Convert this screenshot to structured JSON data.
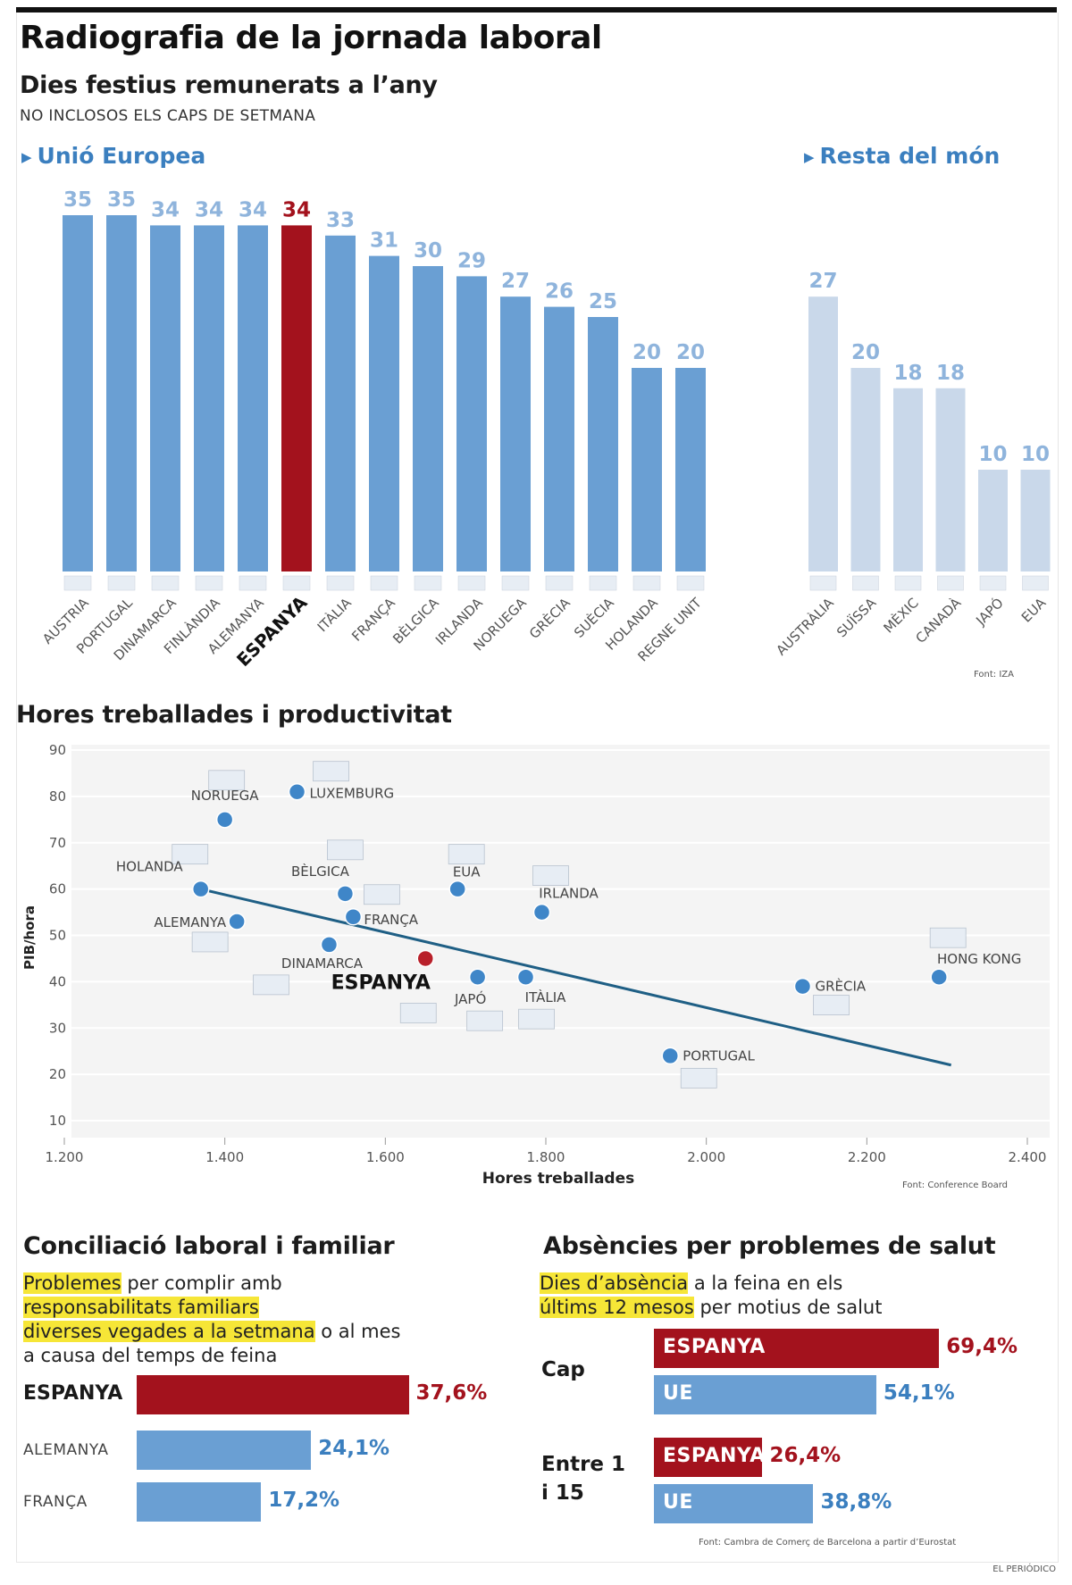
{
  "title": "Radiografia de la jornada laboral",
  "holidays": {
    "heading": "Dies festius remunerats a l’any",
    "subheading": "NO INCLOSOS ELS CAPS DE SETMANA",
    "eu_label": "Unió Europea",
    "world_label": "Resta del món",
    "source": "Font: IZA",
    "colors": {
      "eu": "#6a9fd3",
      "highlight": "#a3121d",
      "world": "#c9d8ea",
      "label": "#8fb4dc"
    }
  },
  "chart_data": [
    {
      "type": "bar",
      "title": "Dies festius remunerats a l’any — Unió Europea",
      "categories": [
        "AUSTRIA",
        "PORTUGAL",
        "DINAMARCA",
        "FINLÀNDIA",
        "ALEMANYA",
        "ESPANYA",
        "ITÀLIA",
        "FRANÇA",
        "BÈLGICA",
        "IRLANDA",
        "NORUEGA",
        "GRÈCIA",
        "SUÈCIA",
        "HOLANDA",
        "REGNE UNIT"
      ],
      "values": [
        35,
        35,
        34,
        34,
        34,
        34,
        33,
        31,
        30,
        29,
        27,
        26,
        25,
        20,
        20
      ],
      "highlight": "ESPANYA",
      "ylim": [
        0,
        35
      ]
    },
    {
      "type": "bar",
      "title": "Dies festius remunerats a l’any — Resta del món",
      "categories": [
        "AUSTRÀLIA",
        "SUÏSSA",
        "MÈXIC",
        "CANADÀ",
        "JAPÓ",
        "EUA"
      ],
      "values": [
        27,
        20,
        18,
        18,
        10,
        10
      ],
      "ylim": [
        0,
        35
      ]
    },
    {
      "type": "scatter",
      "title": "Hores treballades i productivitat",
      "xlabel": "Hores treballades",
      "ylabel": "PIB/hora",
      "xlim": [
        1200,
        2400
      ],
      "ylim": [
        10,
        90
      ],
      "xticks": [
        "1.200",
        "1.400",
        "1.600",
        "1.800",
        "2.000",
        "2.200",
        "2.400"
      ],
      "yticks": [
        10,
        20,
        30,
        40,
        50,
        60,
        70,
        80,
        90
      ],
      "points": [
        {
          "name": "NORUEGA",
          "x": 1400,
          "y": 75
        },
        {
          "name": "LUXEMBURG",
          "x": 1490,
          "y": 81
        },
        {
          "name": "HOLANDA",
          "x": 1370,
          "y": 60
        },
        {
          "name": "ALEMANYA",
          "x": 1415,
          "y": 53
        },
        {
          "name": "DINAMARCA",
          "x": 1530,
          "y": 48
        },
        {
          "name": "BÈLGICA",
          "x": 1550,
          "y": 59
        },
        {
          "name": "FRANÇA",
          "x": 1560,
          "y": 54
        },
        {
          "name": "ESPANYA",
          "x": 1650,
          "y": 45
        },
        {
          "name": "EUA",
          "x": 1690,
          "y": 60
        },
        {
          "name": "IRLANDA",
          "x": 1795,
          "y": 55
        },
        {
          "name": "JAPÓ",
          "x": 1715,
          "y": 41
        },
        {
          "name": "ITÀLIA",
          "x": 1775,
          "y": 41
        },
        {
          "name": "PORTUGAL",
          "x": 1955,
          "y": 24
        },
        {
          "name": "GRÈCIA",
          "x": 2120,
          "y": 39
        },
        {
          "name": "HONG KONG",
          "x": 2290,
          "y": 41
        }
      ],
      "trendline": [
        {
          "x": 1370,
          "y": 60
        },
        {
          "x": 2305,
          "y": 22
        }
      ],
      "source": "Font: Conference Board"
    },
    {
      "type": "bar",
      "orientation": "horizontal",
      "title": "Conciliació laboral i familiar",
      "categories": [
        "ESPANYA",
        "ALEMANYA",
        "FRANÇA"
      ],
      "values": [
        37.6,
        24.1,
        17.2
      ],
      "labels": [
        "37,6%",
        "24,1%",
        "17,2%"
      ],
      "unit": "%"
    },
    {
      "type": "bar",
      "orientation": "horizontal",
      "title": "Absències per problemes de salut",
      "groups": [
        "Cap",
        "Entre 1 i 15"
      ],
      "series": [
        {
          "name": "ESPANYA",
          "values": [
            69.4,
            26.4
          ],
          "labels": [
            "69,4%",
            "26,4%"
          ]
        },
        {
          "name": "UE",
          "values": [
            54.1,
            38.8
          ],
          "labels": [
            "54,1%",
            "38,8%"
          ]
        }
      ],
      "unit": "%"
    }
  ],
  "scatter": {
    "heading": "Hores treballades i productivitat",
    "xlabel": "Hores treballades",
    "ylabel": "PIB/hora",
    "source": "Font: Conference Board",
    "line_color": "#1f5f85"
  },
  "conciliacio": {
    "heading": "Conciliació laboral i familiar",
    "desc_hl": "Problemes",
    "desc_1": " per complir amb",
    "desc_2": "responsabilitats familiars",
    "desc_3": "diverses vegades a la setmana",
    "desc_4": " o al mes",
    "desc_5": "a causa del temps de feina"
  },
  "absencies": {
    "heading": "Absències per problemes de salut",
    "desc_hl": "Dies d’absència",
    "desc_1": " a la feina en els",
    "desc_2": "últims 12 mesos",
    "desc_3": " per motius de salut",
    "group1": "Cap",
    "group2_a": "Entre 1",
    "group2_b": "i 15"
  },
  "source_bottom": "Font: Cambra de Comerç de Barcelona a partir d’Eurostat",
  "footer": "EL PERIÓDICO"
}
